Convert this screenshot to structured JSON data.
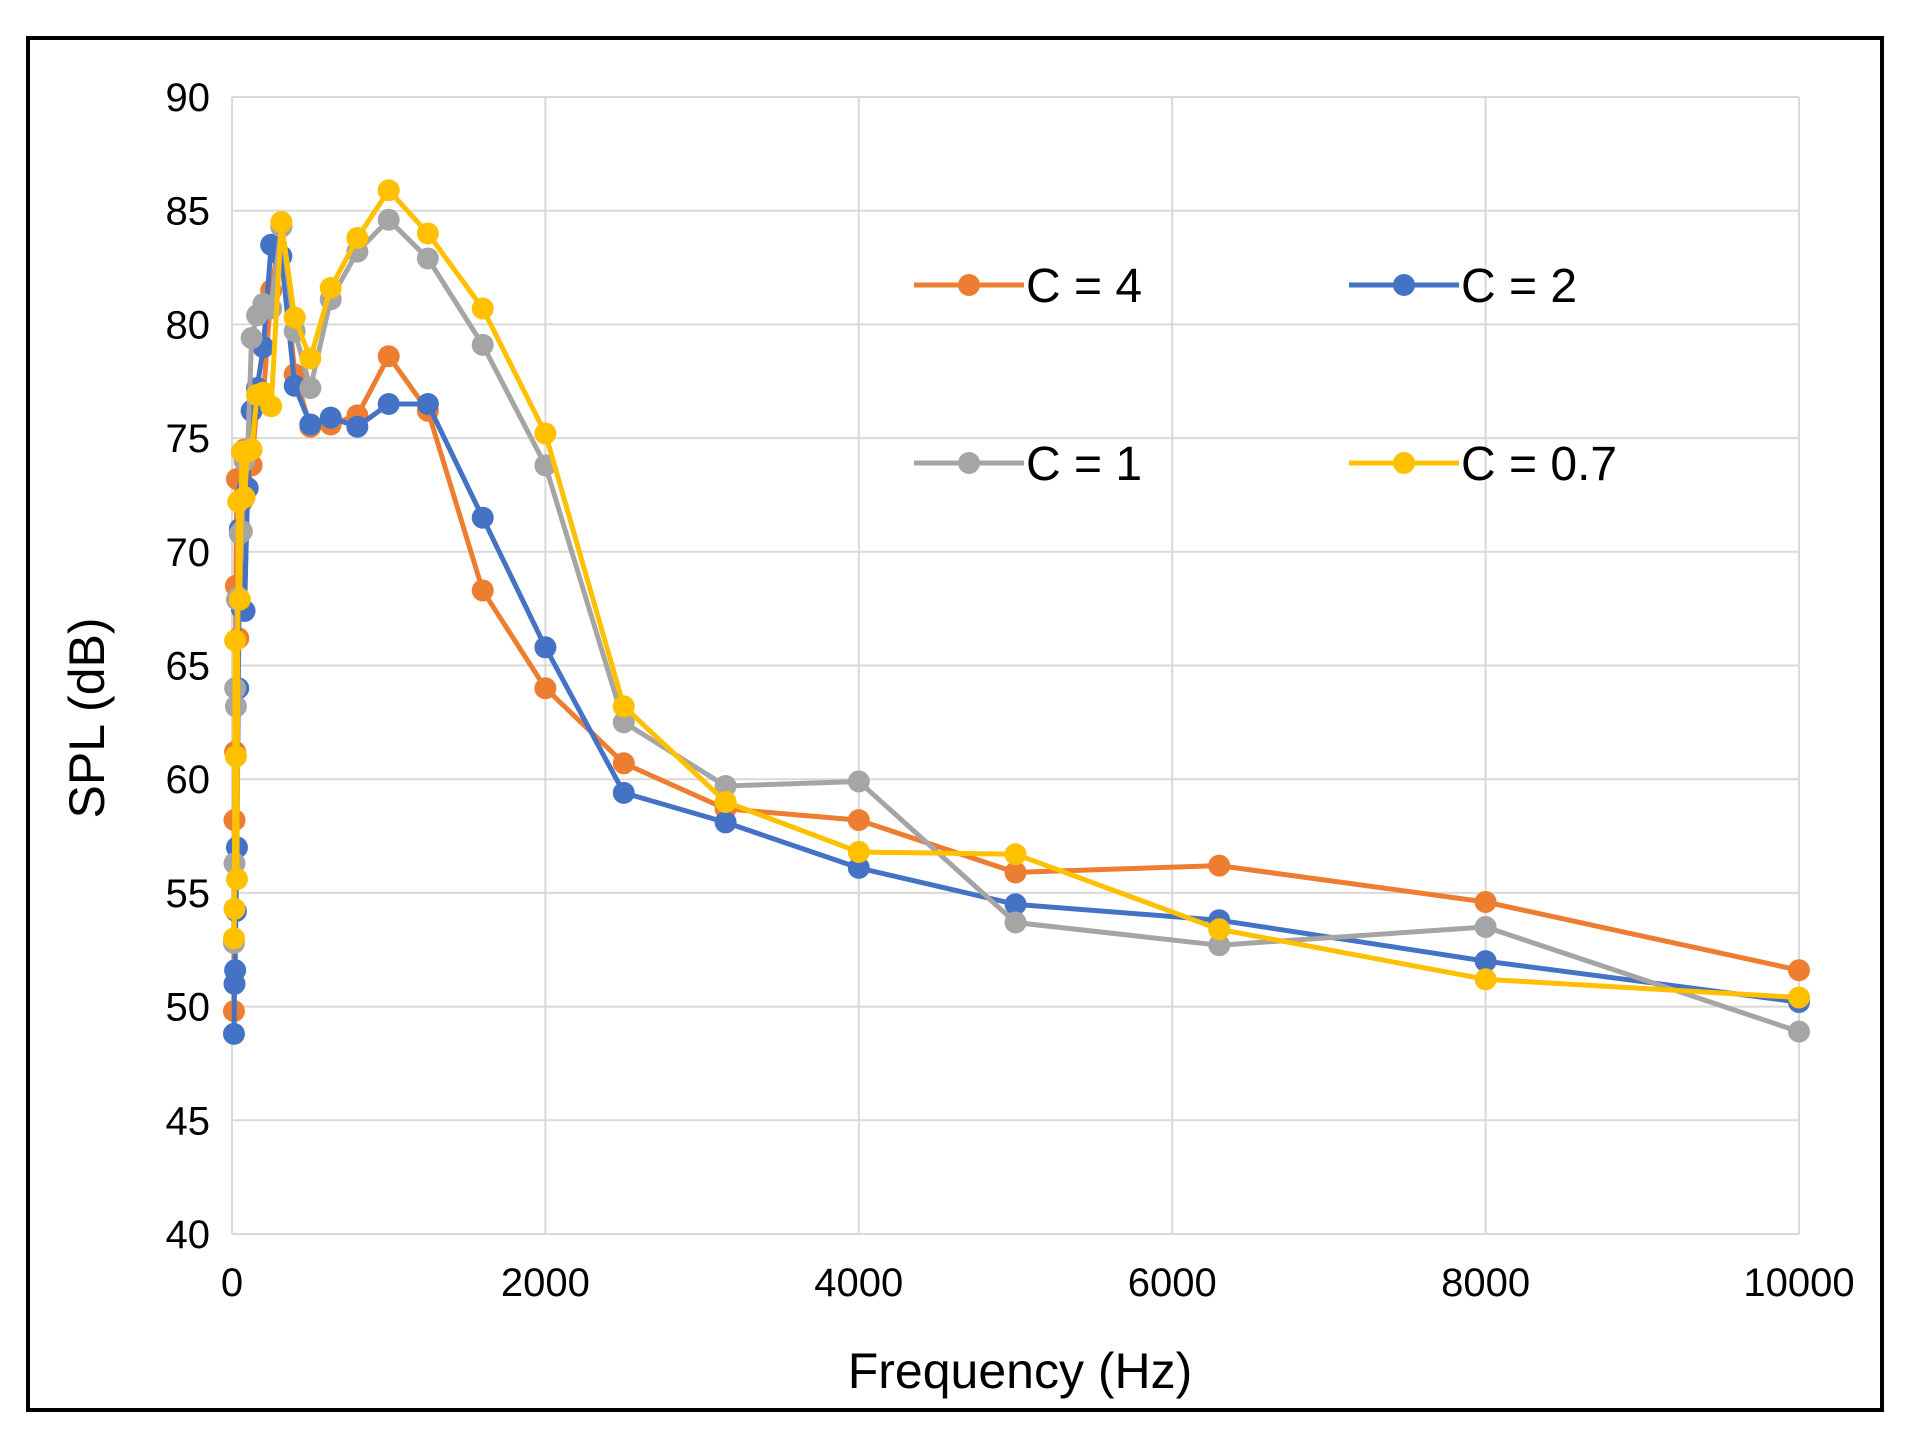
{
  "chart_data": {
    "type": "line",
    "title": "",
    "xlabel": "Frequency (Hz)",
    "ylabel": "SPL (dB)",
    "xlim": [
      0,
      10000
    ],
    "ylim": [
      40,
      90
    ],
    "xticks": [
      0,
      2000,
      4000,
      6000,
      8000,
      10000
    ],
    "yticks": [
      40,
      45,
      50,
      55,
      60,
      65,
      70,
      75,
      80,
      85,
      90
    ],
    "grid": true,
    "legend_position": "top-right",
    "series": [
      {
        "name": "C = 4",
        "color": "#ED7D31",
        "points": [
          [
            12.5,
            49.8
          ],
          [
            16,
            58.2
          ],
          [
            20,
            61.2
          ],
          [
            25,
            68.5
          ],
          [
            31.5,
            73.2
          ],
          [
            40,
            66.2
          ],
          [
            50,
            67.8
          ],
          [
            63,
            72.2
          ],
          [
            80,
            74.5
          ],
          [
            100,
            72.8
          ],
          [
            125,
            73.8
          ],
          [
            160,
            76.5
          ],
          [
            200,
            76.8
          ],
          [
            250,
            81.5
          ],
          [
            315,
            84.3
          ],
          [
            400,
            77.8
          ],
          [
            500,
            75.5
          ],
          [
            630,
            75.6
          ],
          [
            800,
            76.0
          ],
          [
            1000,
            78.6
          ],
          [
            1250,
            76.2
          ],
          [
            1600,
            68.3
          ],
          [
            2000,
            64.0
          ],
          [
            2500,
            60.7
          ],
          [
            3150,
            58.7
          ],
          [
            4000,
            58.2
          ],
          [
            5000,
            55.9
          ],
          [
            6300,
            56.2
          ],
          [
            8000,
            54.6
          ],
          [
            10000,
            51.6
          ]
        ]
      },
      {
        "name": "C = 2",
        "color": "#4472C4",
        "points": [
          [
            12.5,
            48.8
          ],
          [
            16,
            51.0
          ],
          [
            20,
            51.6
          ],
          [
            25,
            54.2
          ],
          [
            31.5,
            57.0
          ],
          [
            40,
            64.0
          ],
          [
            50,
            71.0
          ],
          [
            63,
            67.5
          ],
          [
            80,
            67.4
          ],
          [
            100,
            72.8
          ],
          [
            125,
            76.2
          ],
          [
            160,
            77.2
          ],
          [
            200,
            79.0
          ],
          [
            250,
            83.5
          ],
          [
            315,
            83.0
          ],
          [
            400,
            77.3
          ],
          [
            500,
            75.6
          ],
          [
            630,
            75.9
          ],
          [
            800,
            75.5
          ],
          [
            1000,
            76.5
          ],
          [
            1250,
            76.5
          ],
          [
            1600,
            71.5
          ],
          [
            2000,
            65.8
          ],
          [
            2500,
            59.4
          ],
          [
            3150,
            58.1
          ],
          [
            4000,
            56.1
          ],
          [
            5000,
            54.5
          ],
          [
            6300,
            53.8
          ],
          [
            8000,
            52.0
          ],
          [
            10000,
            50.2
          ]
        ]
      },
      {
        "name": "C = 1",
        "color": "#A5A5A5",
        "points": [
          [
            12.5,
            52.8
          ],
          [
            16,
            56.3
          ],
          [
            20,
            64.0
          ],
          [
            25,
            63.2
          ],
          [
            31.5,
            67.9
          ],
          [
            40,
            68.0
          ],
          [
            50,
            70.8
          ],
          [
            63,
            70.9
          ],
          [
            80,
            74.0
          ],
          [
            100,
            74.5
          ],
          [
            125,
            79.4
          ],
          [
            160,
            80.4
          ],
          [
            200,
            80.9
          ],
          [
            250,
            80.7
          ],
          [
            315,
            84.3
          ],
          [
            400,
            79.7
          ],
          [
            500,
            77.2
          ],
          [
            630,
            81.1
          ],
          [
            800,
            83.2
          ],
          [
            1000,
            84.6
          ],
          [
            1250,
            82.9
          ],
          [
            1600,
            79.1
          ],
          [
            2000,
            73.8
          ],
          [
            2500,
            62.5
          ],
          [
            3150,
            59.7
          ],
          [
            4000,
            59.9
          ],
          [
            5000,
            53.7
          ],
          [
            6300,
            52.7
          ],
          [
            8000,
            53.5
          ],
          [
            10000,
            48.9
          ]
        ]
      },
      {
        "name": "C = 0.7",
        "color": "#FFC000",
        "points": [
          [
            12.5,
            53.0
          ],
          [
            16,
            54.3
          ],
          [
            20,
            66.1
          ],
          [
            25,
            61.0
          ],
          [
            31.5,
            55.6
          ],
          [
            40,
            72.2
          ],
          [
            50,
            67.9
          ],
          [
            63,
            74.4
          ],
          [
            80,
            72.4
          ],
          [
            100,
            74.4
          ],
          [
            125,
            74.5
          ],
          [
            160,
            76.9
          ],
          [
            200,
            77.0
          ],
          [
            250,
            76.4
          ],
          [
            315,
            84.5
          ],
          [
            400,
            80.3
          ],
          [
            500,
            78.5
          ],
          [
            630,
            81.6
          ],
          [
            800,
            83.8
          ],
          [
            1000,
            85.9
          ],
          [
            1250,
            84.0
          ],
          [
            1600,
            80.7
          ],
          [
            2000,
            75.2
          ],
          [
            2500,
            63.2
          ],
          [
            3150,
            59.0
          ],
          [
            4000,
            56.8
          ],
          [
            5000,
            56.7
          ],
          [
            6300,
            53.4
          ],
          [
            8000,
            51.2
          ],
          [
            10000,
            50.4
          ]
        ]
      }
    ]
  }
}
